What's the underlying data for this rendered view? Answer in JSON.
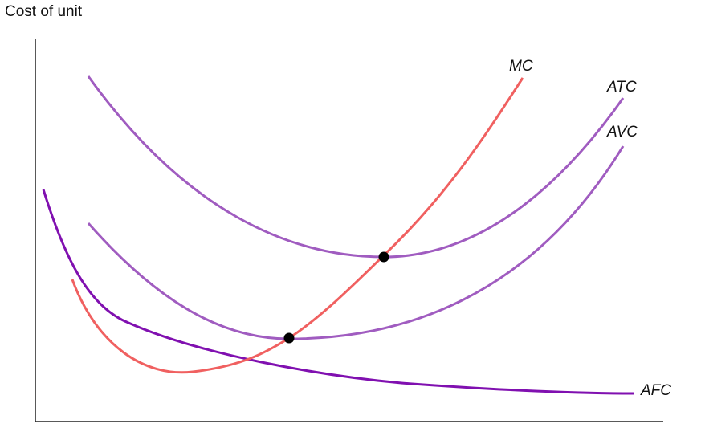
{
  "axis": {
    "y_label": "Cost of unit"
  },
  "curves": [
    {
      "label": "MC"
    },
    {
      "label": "ATC"
    },
    {
      "label": "AVC"
    },
    {
      "label": "AFC"
    }
  ]
}
